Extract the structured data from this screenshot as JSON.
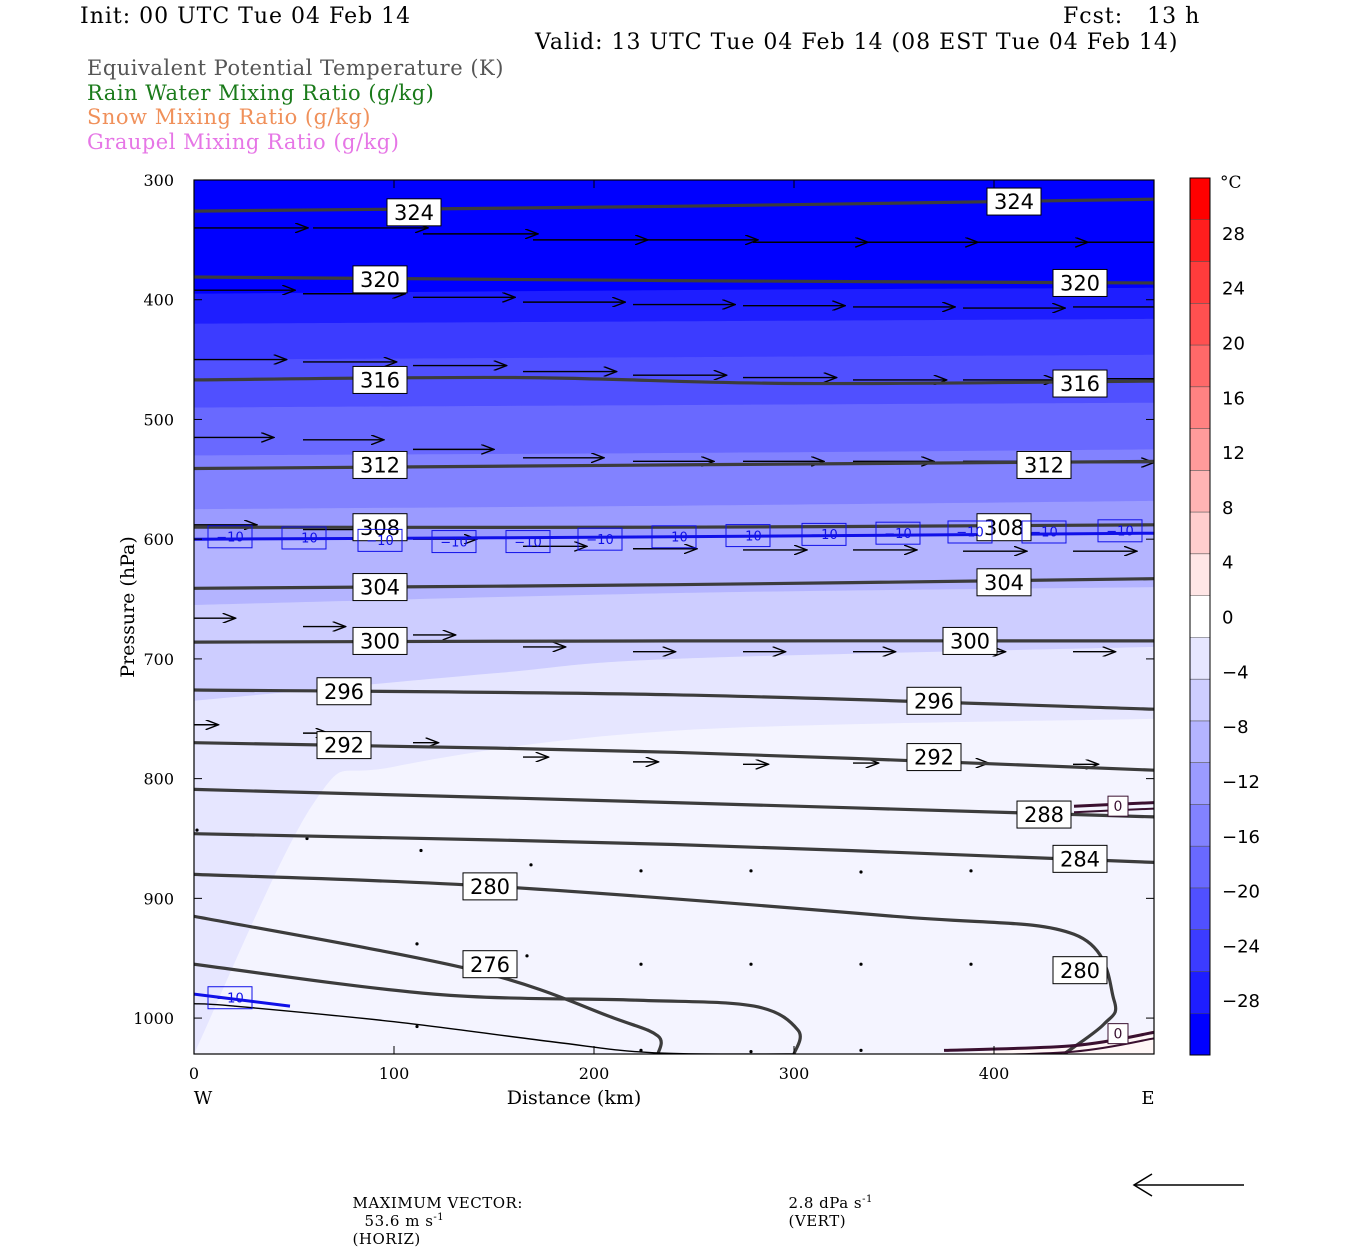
{
  "header": {
    "init": "Init: 00 UTC Tue 04 Feb 14",
    "fcst": "Fcst:   13 h",
    "valid": "Valid: 13 UTC Tue 04 Feb 14 (08 EST Tue 04 Feb 14)"
  },
  "legend": [
    {
      "text": "Equivalent Potential Temperature (K)",
      "color": "#555555"
    },
    {
      "text": "Rain Water Mixing Ratio (g/kg)",
      "color": "#1a7a1a"
    },
    {
      "text": "Snow Mixing Ratio (g/kg)",
      "color": "#f0905a"
    },
    {
      "text": "Graupel Mixing Ratio (g/kg)",
      "color": "#e676e6"
    }
  ],
  "footer": {
    "max_vector_label": "MAXIMUM VECTOR:",
    "horiz_value": "53.6 m s",
    "horiz_unit": "(HORIZ)",
    "vert_value": "2.8 dPa s",
    "vert_unit": "(VERT)",
    "exponent": "-1"
  },
  "chart_data": {
    "type": "contour",
    "xlabel": "Distance (km)",
    "ylabel": "Pressure (hPa)",
    "xlim": [
      0,
      480
    ],
    "ylim": [
      1030,
      300
    ],
    "x_ticks": [
      "0",
      "100",
      "200",
      "300",
      "400"
    ],
    "y_ticks": [
      "300",
      "400",
      "500",
      "600",
      "700",
      "800",
      "900",
      "1000"
    ],
    "x_tick_values": [
      0,
      100,
      200,
      300,
      400
    ],
    "y_tick_values": [
      300,
      400,
      500,
      600,
      700,
      800,
      900,
      1000
    ],
    "left_end_label": "W",
    "right_end_label": "E",
    "colorbar": {
      "unit": "°C",
      "labels": [
        "28",
        "24",
        "20",
        "16",
        "12",
        "8",
        "4",
        "0",
        "−4",
        "−8",
        "−12",
        "−16",
        "−20",
        "−24",
        "−28"
      ],
      "values": [
        28,
        24,
        20,
        16,
        12,
        8,
        4,
        0,
        -4,
        -8,
        -12,
        -16,
        -20,
        -24,
        -28
      ],
      "colors": [
        "#ff0000",
        "#ff1e1e",
        "#ff3c3c",
        "#ff5050",
        "#ff6969",
        "#ff8282",
        "#ff9b9b",
        "#ffb4b4",
        "#ffcdcd",
        "#ffe6e6",
        "#ffffff",
        "#e6e6ff",
        "#cdcdff",
        "#b4b4ff",
        "#9b9bff",
        "#8282ff",
        "#6969ff",
        "#5050ff",
        "#3c3cff",
        "#1e1eff",
        "#0000ff"
      ]
    },
    "theta_e_contours": [
      {
        "label": "324",
        "x": [
          0,
          240,
          480
        ],
        "p": [
          326,
          322,
          316
        ],
        "label_positions": [
          [
            110,
            327
          ],
          [
            410,
            318
          ]
        ]
      },
      {
        "label": "320",
        "x": [
          0,
          240,
          480
        ],
        "p": [
          381,
          384,
          386
        ],
        "label_positions": [
          [
            93,
            383
          ],
          [
            443,
            386
          ]
        ]
      },
      {
        "label": "316",
        "x": [
          0,
          160,
          300,
          480
        ],
        "p": [
          467,
          465,
          470,
          468
        ],
        "label_positions": [
          [
            93,
            467
          ],
          [
            443,
            470
          ]
        ]
      },
      {
        "label": "312",
        "x": [
          0,
          240,
          480
        ],
        "p": [
          541,
          538,
          535
        ],
        "label_positions": [
          [
            93,
            538
          ],
          [
            425,
            538
          ]
        ]
      },
      {
        "label": "308",
        "x": [
          0,
          240,
          480
        ],
        "p": [
          590,
          590,
          588
        ],
        "label_positions": [
          [
            93,
            590
          ],
          [
            405,
            590
          ]
        ]
      },
      {
        "label": "304",
        "x": [
          0,
          240,
          480
        ],
        "p": [
          641,
          638,
          633
        ],
        "label_positions": [
          [
            93,
            640
          ],
          [
            405,
            636
          ]
        ]
      },
      {
        "label": "300",
        "x": [
          0,
          240,
          480
        ],
        "p": [
          686,
          685,
          685
        ],
        "label_positions": [
          [
            93,
            685
          ],
          [
            388,
            685
          ]
        ]
      },
      {
        "label": "296",
        "x": [
          0,
          240,
          480
        ],
        "p": [
          726,
          730,
          742
        ],
        "label_positions": [
          [
            75,
            727
          ],
          [
            370,
            735
          ]
        ]
      },
      {
        "label": "292",
        "x": [
          0,
          240,
          480
        ],
        "p": [
          770,
          778,
          793
        ],
        "label_positions": [
          [
            75,
            772
          ],
          [
            370,
            782
          ]
        ]
      },
      {
        "label": "288",
        "x": [
          0,
          240,
          480
        ],
        "p": [
          809,
          820,
          832
        ],
        "label_positions": [
          [
            425,
            830
          ]
        ]
      },
      {
        "label": "284",
        "x": [
          0,
          240,
          480
        ],
        "p": [
          846,
          855,
          870
        ],
        "label_positions": [
          [
            443,
            867
          ]
        ]
      },
      {
        "label": "280",
        "x": [
          0,
          150,
          350,
          440,
          460,
          455,
          435
        ],
        "p": [
          880,
          890,
          915,
          930,
          985,
          1005,
          1030
        ],
        "label_positions": [
          [
            148,
            890
          ],
          [
            443,
            960
          ]
        ]
      },
      {
        "label": "276",
        "x": [
          0,
          140,
          210,
          232,
          232
        ],
        "p": [
          915,
          960,
          1000,
          1015,
          1030
        ],
        "label_positions": [
          [
            148,
            955
          ]
        ]
      },
      {
        "label": "",
        "x": [
          0,
          120,
          220,
          280,
          302,
          300
        ],
        "p": [
          955,
          980,
          985,
          990,
          1010,
          1030
        ],
        "label_positions": []
      }
    ],
    "isotherm_minus10": {
      "label": "−10",
      "x": [
        0,
        240,
        480
      ],
      "p": [
        600,
        598,
        595
      ],
      "label_positions": [
        [
          18,
          598
        ],
        [
          55,
          599
        ],
        [
          93,
          601
        ],
        [
          130,
          602
        ],
        [
          167,
          602
        ],
        [
          203,
          600
        ],
        [
          240,
          598
        ],
        [
          277,
          597
        ],
        [
          315,
          596
        ],
        [
          352,
          595
        ],
        [
          388,
          594
        ],
        [
          425,
          594
        ],
        [
          463,
          593
        ]
      ]
    },
    "isotherm_low": {
      "label": "−10",
      "x": [
        0,
        48
      ],
      "p": [
        980,
        990
      ],
      "label_positions": [
        [
          18,
          983
        ]
      ]
    },
    "rain_contours": [
      {
        "label": "0",
        "x": [
          440,
          480
        ],
        "p": [
          823,
          820
        ],
        "label_positions": [
          [
            462,
            823
          ]
        ]
      },
      {
        "label": "0",
        "x": [
          375,
          440,
          480
        ],
        "p": [
          1027,
          1023,
          1012
        ],
        "label_positions": [
          [
            462,
            1013
          ]
        ]
      }
    ],
    "wind_vectors": [
      {
        "x": 0,
        "p": 340,
        "u": 54,
        "w": 0
      },
      {
        "x": 60,
        "p": 340,
        "u": 54,
        "w": 0
      },
      {
        "x": 115,
        "p": 345,
        "u": 54,
        "w": 0
      },
      {
        "x": 170,
        "p": 350,
        "u": 54,
        "w": 0
      },
      {
        "x": 225,
        "p": 350,
        "u": 54,
        "w": 0
      },
      {
        "x": 280,
        "p": 352,
        "u": 54,
        "w": 0
      },
      {
        "x": 335,
        "p": 352,
        "u": 54,
        "w": 0
      },
      {
        "x": 390,
        "p": 352,
        "u": 54,
        "w": 0
      },
      {
        "x": 445,
        "p": 352,
        "u": 54,
        "w": 0
      },
      {
        "x": 0,
        "p": 392,
        "u": 48,
        "w": 0
      },
      {
        "x": 55,
        "p": 395,
        "u": 48,
        "w": 0
      },
      {
        "x": 110,
        "p": 398,
        "u": 48,
        "w": 0
      },
      {
        "x": 165,
        "p": 402,
        "u": 48,
        "w": 0
      },
      {
        "x": 220,
        "p": 404,
        "u": 48,
        "w": 0
      },
      {
        "x": 275,
        "p": 405,
        "u": 48,
        "w": 0
      },
      {
        "x": 330,
        "p": 406,
        "u": 48,
        "w": 0
      },
      {
        "x": 385,
        "p": 407,
        "u": 48,
        "w": 0
      },
      {
        "x": 440,
        "p": 406,
        "u": 48,
        "w": 0
      },
      {
        "x": 0,
        "p": 450,
        "u": 44,
        "w": 0
      },
      {
        "x": 55,
        "p": 452,
        "u": 44,
        "w": 0
      },
      {
        "x": 110,
        "p": 455,
        "u": 44,
        "w": 0
      },
      {
        "x": 165,
        "p": 460,
        "u": 44,
        "w": 0
      },
      {
        "x": 220,
        "p": 463,
        "u": 44,
        "w": 0
      },
      {
        "x": 275,
        "p": 465,
        "u": 44,
        "w": 0
      },
      {
        "x": 330,
        "p": 467,
        "u": 44,
        "w": 0
      },
      {
        "x": 385,
        "p": 467,
        "u": 44,
        "w": 0
      },
      {
        "x": 440,
        "p": 466,
        "u": 44,
        "w": 0
      },
      {
        "x": 0,
        "p": 515,
        "u": 38,
        "w": 0
      },
      {
        "x": 55,
        "p": 517,
        "u": 38,
        "w": 0
      },
      {
        "x": 110,
        "p": 525,
        "u": 38,
        "w": 0
      },
      {
        "x": 165,
        "p": 532,
        "u": 38,
        "w": 0
      },
      {
        "x": 220,
        "p": 535,
        "u": 38,
        "w": 0
      },
      {
        "x": 275,
        "p": 535,
        "u": 38,
        "w": 0
      },
      {
        "x": 330,
        "p": 535,
        "u": 38,
        "w": 0
      },
      {
        "x": 385,
        "p": 535,
        "u": 38,
        "w": 0
      },
      {
        "x": 440,
        "p": 536,
        "u": 38,
        "w": 0
      },
      {
        "x": 0,
        "p": 588,
        "u": 30,
        "w": 0
      },
      {
        "x": 55,
        "p": 592,
        "u": 30,
        "w": 0
      },
      {
        "x": 110,
        "p": 600,
        "u": 30,
        "w": 0
      },
      {
        "x": 165,
        "p": 606,
        "u": 30,
        "w": 0
      },
      {
        "x": 220,
        "p": 608,
        "u": 30,
        "w": 0
      },
      {
        "x": 275,
        "p": 609,
        "u": 30,
        "w": 0
      },
      {
        "x": 330,
        "p": 609,
        "u": 30,
        "w": 0
      },
      {
        "x": 385,
        "p": 610,
        "u": 30,
        "w": 0
      },
      {
        "x": 440,
        "p": 610,
        "u": 30,
        "w": 0
      },
      {
        "x": 0,
        "p": 666,
        "u": 20,
        "w": 0
      },
      {
        "x": 55,
        "p": 673,
        "u": 20,
        "w": 0
      },
      {
        "x": 110,
        "p": 680,
        "u": 20,
        "w": 0
      },
      {
        "x": 165,
        "p": 690,
        "u": 20,
        "w": 0
      },
      {
        "x": 220,
        "p": 694,
        "u": 20,
        "w": 0
      },
      {
        "x": 275,
        "p": 694,
        "u": 20,
        "w": 0
      },
      {
        "x": 330,
        "p": 694,
        "u": 20,
        "w": 0
      },
      {
        "x": 385,
        "p": 694,
        "u": 20,
        "w": 0
      },
      {
        "x": 440,
        "p": 694,
        "u": 20,
        "w": 0
      },
      {
        "x": 0,
        "p": 755,
        "u": 12,
        "w": 0
      },
      {
        "x": 55,
        "p": 762,
        "u": 12,
        "w": 0
      },
      {
        "x": 110,
        "p": 770,
        "u": 12,
        "w": 0
      },
      {
        "x": 165,
        "p": 782,
        "u": 12,
        "w": 0
      },
      {
        "x": 220,
        "p": 786,
        "u": 12,
        "w": 0
      },
      {
        "x": 275,
        "p": 788,
        "u": 12,
        "w": 0
      },
      {
        "x": 330,
        "p": 787,
        "u": 12,
        "w": 0
      },
      {
        "x": 385,
        "p": 787,
        "u": 12,
        "w": 0
      },
      {
        "x": 440,
        "p": 788,
        "u": 12,
        "w": 0
      }
    ],
    "wind_dots": [
      {
        "x": 0,
        "p": 843
      },
      {
        "x": 55,
        "p": 850
      },
      {
        "x": 112,
        "p": 860
      },
      {
        "x": 167,
        "p": 872
      },
      {
        "x": 222,
        "p": 877
      },
      {
        "x": 277,
        "p": 877
      },
      {
        "x": 332,
        "p": 878
      },
      {
        "x": 387,
        "p": 877
      },
      {
        "x": 110,
        "p": 938
      },
      {
        "x": 165,
        "p": 948
      },
      {
        "x": 222,
        "p": 955
      },
      {
        "x": 277,
        "p": 955
      },
      {
        "x": 332,
        "p": 955
      },
      {
        "x": 387,
        "p": 955
      },
      {
        "x": 110,
        "p": 1007
      },
      {
        "x": 222,
        "p": 1027
      },
      {
        "x": 277,
        "p": 1028
      },
      {
        "x": 332,
        "p": 1027
      }
    ],
    "temperature_field": [
      {
        "color": "#0000ff",
        "x": [
          0,
          480
        ],
        "p": [
          300,
          300
        ]
      },
      {
        "color": "#1e1eff",
        "x": [
          0,
          240,
          480
        ],
        "p": [
          395,
          392,
          390
        ]
      },
      {
        "color": "#3c3cff",
        "x": [
          0,
          240,
          480
        ],
        "p": [
          420,
          418,
          416
        ]
      },
      {
        "color": "#5050ff",
        "x": [
          0,
          240,
          480
        ],
        "p": [
          450,
          448,
          446
        ]
      },
      {
        "color": "#6969ff",
        "x": [
          0,
          240,
          480
        ],
        "p": [
          490,
          488,
          486
        ]
      },
      {
        "color": "#8282ff",
        "x": [
          0,
          240,
          480
        ],
        "p": [
          530,
          528,
          525
        ]
      },
      {
        "color": "#9b9bff",
        "x": [
          0,
          240,
          480
        ],
        "p": [
          575,
          572,
          568
        ]
      },
      {
        "color": "#b4b4ff",
        "x": [
          0,
          240,
          480
        ],
        "p": [
          600,
          597,
          595
        ]
      },
      {
        "color": "#cdcdff",
        "x": [
          0,
          240,
          480
        ],
        "p": [
          655,
          645,
          640
        ]
      },
      {
        "color": "#e6e6ff",
        "x": [
          0,
          150,
          240,
          480
        ],
        "p": [
          735,
          712,
          700,
          690
        ]
      },
      {
        "color": "#f4f4ff",
        "x": [
          0,
          60,
          100,
          240,
          480
        ],
        "p": [
          1030,
          820,
          790,
          760,
          750
        ]
      }
    ],
    "surface_contour": {
      "x": [
        0,
        20,
        100,
        180,
        230,
        300
      ],
      "p": [
        988,
        990,
        1003,
        1020,
        1029,
        1030
      ]
    }
  }
}
